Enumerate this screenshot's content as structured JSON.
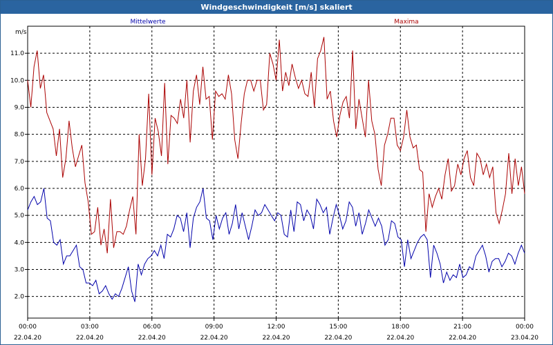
{
  "chart_data": {
    "type": "line",
    "title": "Windgeschwindigkeit [m/s] skaliert",
    "ylabel": "m/s",
    "ylim": [
      1.2,
      12.0
    ],
    "yticks": [
      "2.0",
      "3.0",
      "4.0",
      "5.0",
      "6.0",
      "7.0",
      "8.0",
      "9.0",
      "10.0",
      "11.0"
    ],
    "ytick_values": [
      2,
      3,
      4,
      5,
      6,
      7,
      8,
      9,
      10,
      11
    ],
    "xlim": [
      0,
      24
    ],
    "xticks": [
      {
        "x": 0,
        "time": "00:00",
        "date": "22.04.20"
      },
      {
        "x": 3,
        "time": "03:00",
        "date": "22.04.20"
      },
      {
        "x": 6,
        "time": "06:00",
        "date": "22.04.20"
      },
      {
        "x": 9,
        "time": "09:00",
        "date": "22.04.20"
      },
      {
        "x": 12,
        "time": "12:00",
        "date": "22.04.20"
      },
      {
        "x": 15,
        "time": "15:00",
        "date": "22.04.20"
      },
      {
        "x": 18,
        "time": "18:00",
        "date": "22.04.20"
      },
      {
        "x": 21,
        "time": "21:00",
        "date": "22.04.20"
      },
      {
        "x": 24,
        "time": "00:00",
        "date": "23.04.20"
      }
    ],
    "grid": true,
    "series": [
      {
        "name": "Mittelwerte",
        "color": "#0000aa",
        "values": [
          5.2,
          5.5,
          5.7,
          5.4,
          5.5,
          6.0,
          4.9,
          4.8,
          4.0,
          3.9,
          4.1,
          3.2,
          3.5,
          3.5,
          3.7,
          3.9,
          3.1,
          3.0,
          2.5,
          2.5,
          2.4,
          2.6,
          2.1,
          2.2,
          2.4,
          2.1,
          1.9,
          2.1,
          2.0,
          2.3,
          2.7,
          3.1,
          2.2,
          1.8,
          3.2,
          2.8,
          3.2,
          3.4,
          3.5,
          3.7,
          3.5,
          3.9,
          3.4,
          4.3,
          4.2,
          4.5,
          5.0,
          4.9,
          4.4,
          5.1,
          3.8,
          4.9,
          5.3,
          5.5,
          6.0,
          4.9,
          4.8,
          4.1,
          5.0,
          4.5,
          4.9,
          5.1,
          4.3,
          4.7,
          5.4,
          4.5,
          5.1,
          4.6,
          4.1,
          4.6,
          5.2,
          5.0,
          5.1,
          5.4,
          5.2,
          5.0,
          4.8,
          5.1,
          5.0,
          4.3,
          4.2,
          5.2,
          4.4,
          5.5,
          5.4,
          4.8,
          5.2,
          5.0,
          4.5,
          5.6,
          5.4,
          5.1,
          5.3,
          4.3,
          4.9,
          5.4,
          5.0,
          4.5,
          4.8,
          5.5,
          5.3,
          4.6,
          5.1,
          4.3,
          4.7,
          5.2,
          4.9,
          4.6,
          4.9,
          4.6,
          3.9,
          4.1,
          4.8,
          4.7,
          4.2,
          4.1,
          3.1,
          4.1,
          3.4,
          3.7,
          4.0,
          4.2,
          4.3,
          4.1,
          2.7,
          3.9,
          3.6,
          3.2,
          2.5,
          2.9,
          2.6,
          2.8,
          2.7,
          3.2,
          2.7,
          2.8,
          3.1,
          3.0,
          3.5,
          3.7,
          3.9,
          3.5,
          2.9,
          3.3,
          3.4,
          3.4,
          3.1,
          3.3,
          3.6,
          3.5,
          3.2,
          3.6,
          3.9,
          3.6
        ]
      },
      {
        "name": "Maxima",
        "color": "#aa0000",
        "values": [
          10.0,
          9.0,
          10.5,
          11.1,
          9.7,
          10.2,
          8.8,
          8.5,
          8.2,
          7.2,
          8.2,
          6.4,
          7.1,
          8.5,
          7.5,
          6.8,
          7.2,
          7.6,
          6.2,
          5.5,
          4.3,
          4.4,
          5.3,
          3.9,
          4.5,
          3.6,
          5.6,
          3.8,
          4.4,
          4.4,
          4.3,
          4.6,
          5.2,
          5.7,
          4.3,
          8.0,
          6.1,
          7.1,
          9.5,
          6.5,
          8.6,
          8.1,
          7.2,
          9.9,
          6.9,
          8.7,
          8.6,
          8.4,
          9.3,
          8.6,
          10.0,
          7.7,
          9.6,
          10.2,
          9.1,
          10.5,
          9.3,
          9.4,
          7.8,
          9.6,
          9.4,
          9.5,
          9.3,
          10.2,
          9.5,
          7.8,
          7.1,
          8.4,
          9.5,
          10.0,
          10.0,
          9.6,
          10.0,
          10.0,
          8.9,
          9.1,
          11.0,
          10.6,
          10.0,
          11.5,
          9.6,
          10.3,
          9.8,
          10.6,
          10.1,
          9.7,
          10.0,
          9.5,
          9.4,
          10.3,
          9.0,
          10.8,
          11.1,
          11.6,
          9.3,
          9.6,
          8.5,
          7.9,
          8.7,
          9.2,
          9.4,
          8.6,
          11.1,
          8.2,
          9.3,
          8.6,
          7.9,
          10.0,
          8.5,
          8.0,
          6.7,
          6.1,
          7.6,
          8.0,
          8.6,
          8.6,
          7.6,
          7.4,
          7.9,
          8.9,
          7.9,
          7.5,
          7.6,
          6.7,
          6.6,
          4.4,
          5.8,
          5.3,
          5.7,
          6.0,
          5.6,
          6.5,
          7.1,
          5.9,
          6.1,
          6.9,
          6.5,
          7.1,
          7.4,
          6.4,
          6.1,
          7.3,
          7.1,
          6.5,
          6.9,
          6.4,
          6.8,
          5.1,
          4.7,
          5.2,
          5.8,
          7.3,
          5.8,
          7.1,
          6.1,
          6.8,
          5.8
        ]
      }
    ]
  }
}
